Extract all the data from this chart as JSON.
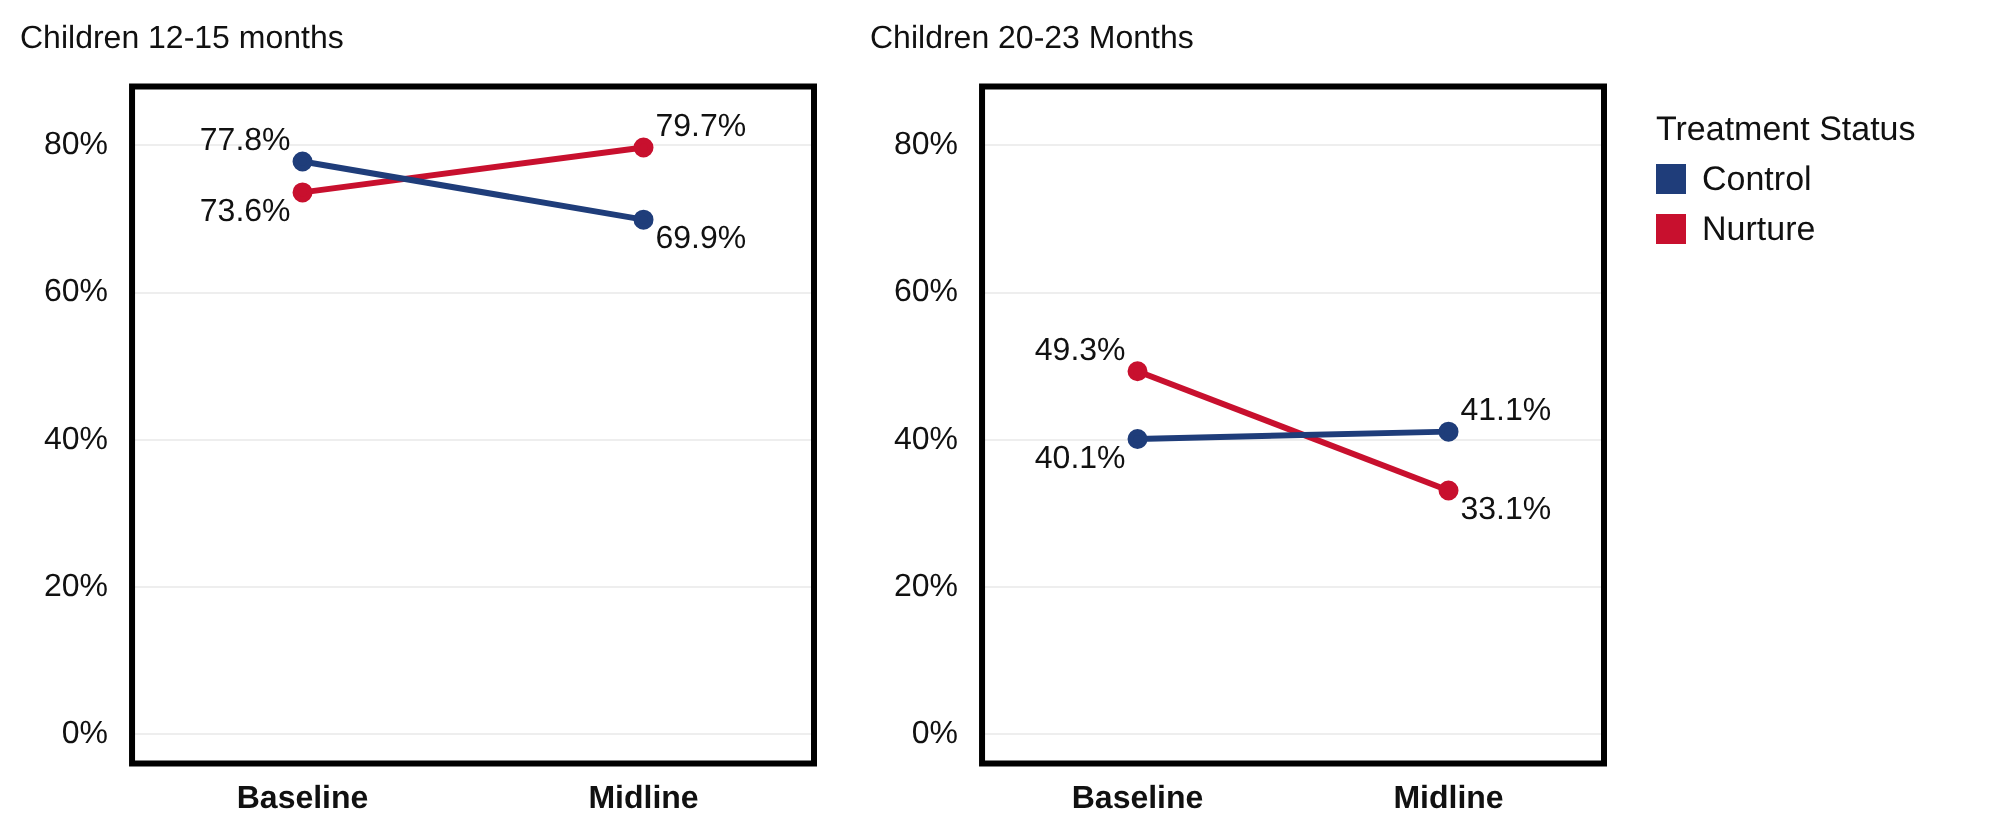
{
  "chart_data": [
    {
      "type": "line",
      "title": "Children 12-15 months",
      "categories": [
        "Baseline",
        "Midline"
      ],
      "series": [
        {
          "color": "#1f3d7a",
          "values": [
            77.8,
            69.9
          ],
          "value_labels": [
            "77.8%",
            "69.9%"
          ]
        },
        {
          "color": "#c8102e",
          "values": [
            73.6,
            79.7
          ],
          "value_labels": [
            "73.6%",
            "79.7%"
          ]
        }
      ],
      "ylim": [
        -4,
        88
      ],
      "yticks": [
        {
          "value": 0,
          "label": "0%"
        },
        {
          "value": 20,
          "label": "20%"
        },
        {
          "value": 40,
          "label": "40%"
        },
        {
          "value": 60,
          "label": "60%"
        },
        {
          "value": 80,
          "label": "80%"
        }
      ],
      "grid": "y",
      "marker": "circle",
      "legend": false
    },
    {
      "type": "line",
      "title": "Children 20-23 Months",
      "categories": [
        "Baseline",
        "Midline"
      ],
      "legend_title": "Treatment Status",
      "series": [
        {
          "name": "Control",
          "color": "#1f3d7a",
          "values": [
            40.1,
            41.1
          ],
          "value_labels": [
            "40.1%",
            "41.1%"
          ]
        },
        {
          "name": "Nurture",
          "color": "#c8102e",
          "values": [
            49.3,
            33.1
          ],
          "value_labels": [
            "49.3%",
            "33.1%"
          ]
        }
      ],
      "ylim": [
        -4,
        88
      ],
      "yticks": [
        {
          "value": 0,
          "label": "0%"
        },
        {
          "value": 20,
          "label": "20%"
        },
        {
          "value": 40,
          "label": "40%"
        },
        {
          "value": 60,
          "label": "60%"
        },
        {
          "value": 80,
          "label": "80%"
        }
      ],
      "grid": "y",
      "marker": "circle",
      "legend": "top right"
    }
  ]
}
